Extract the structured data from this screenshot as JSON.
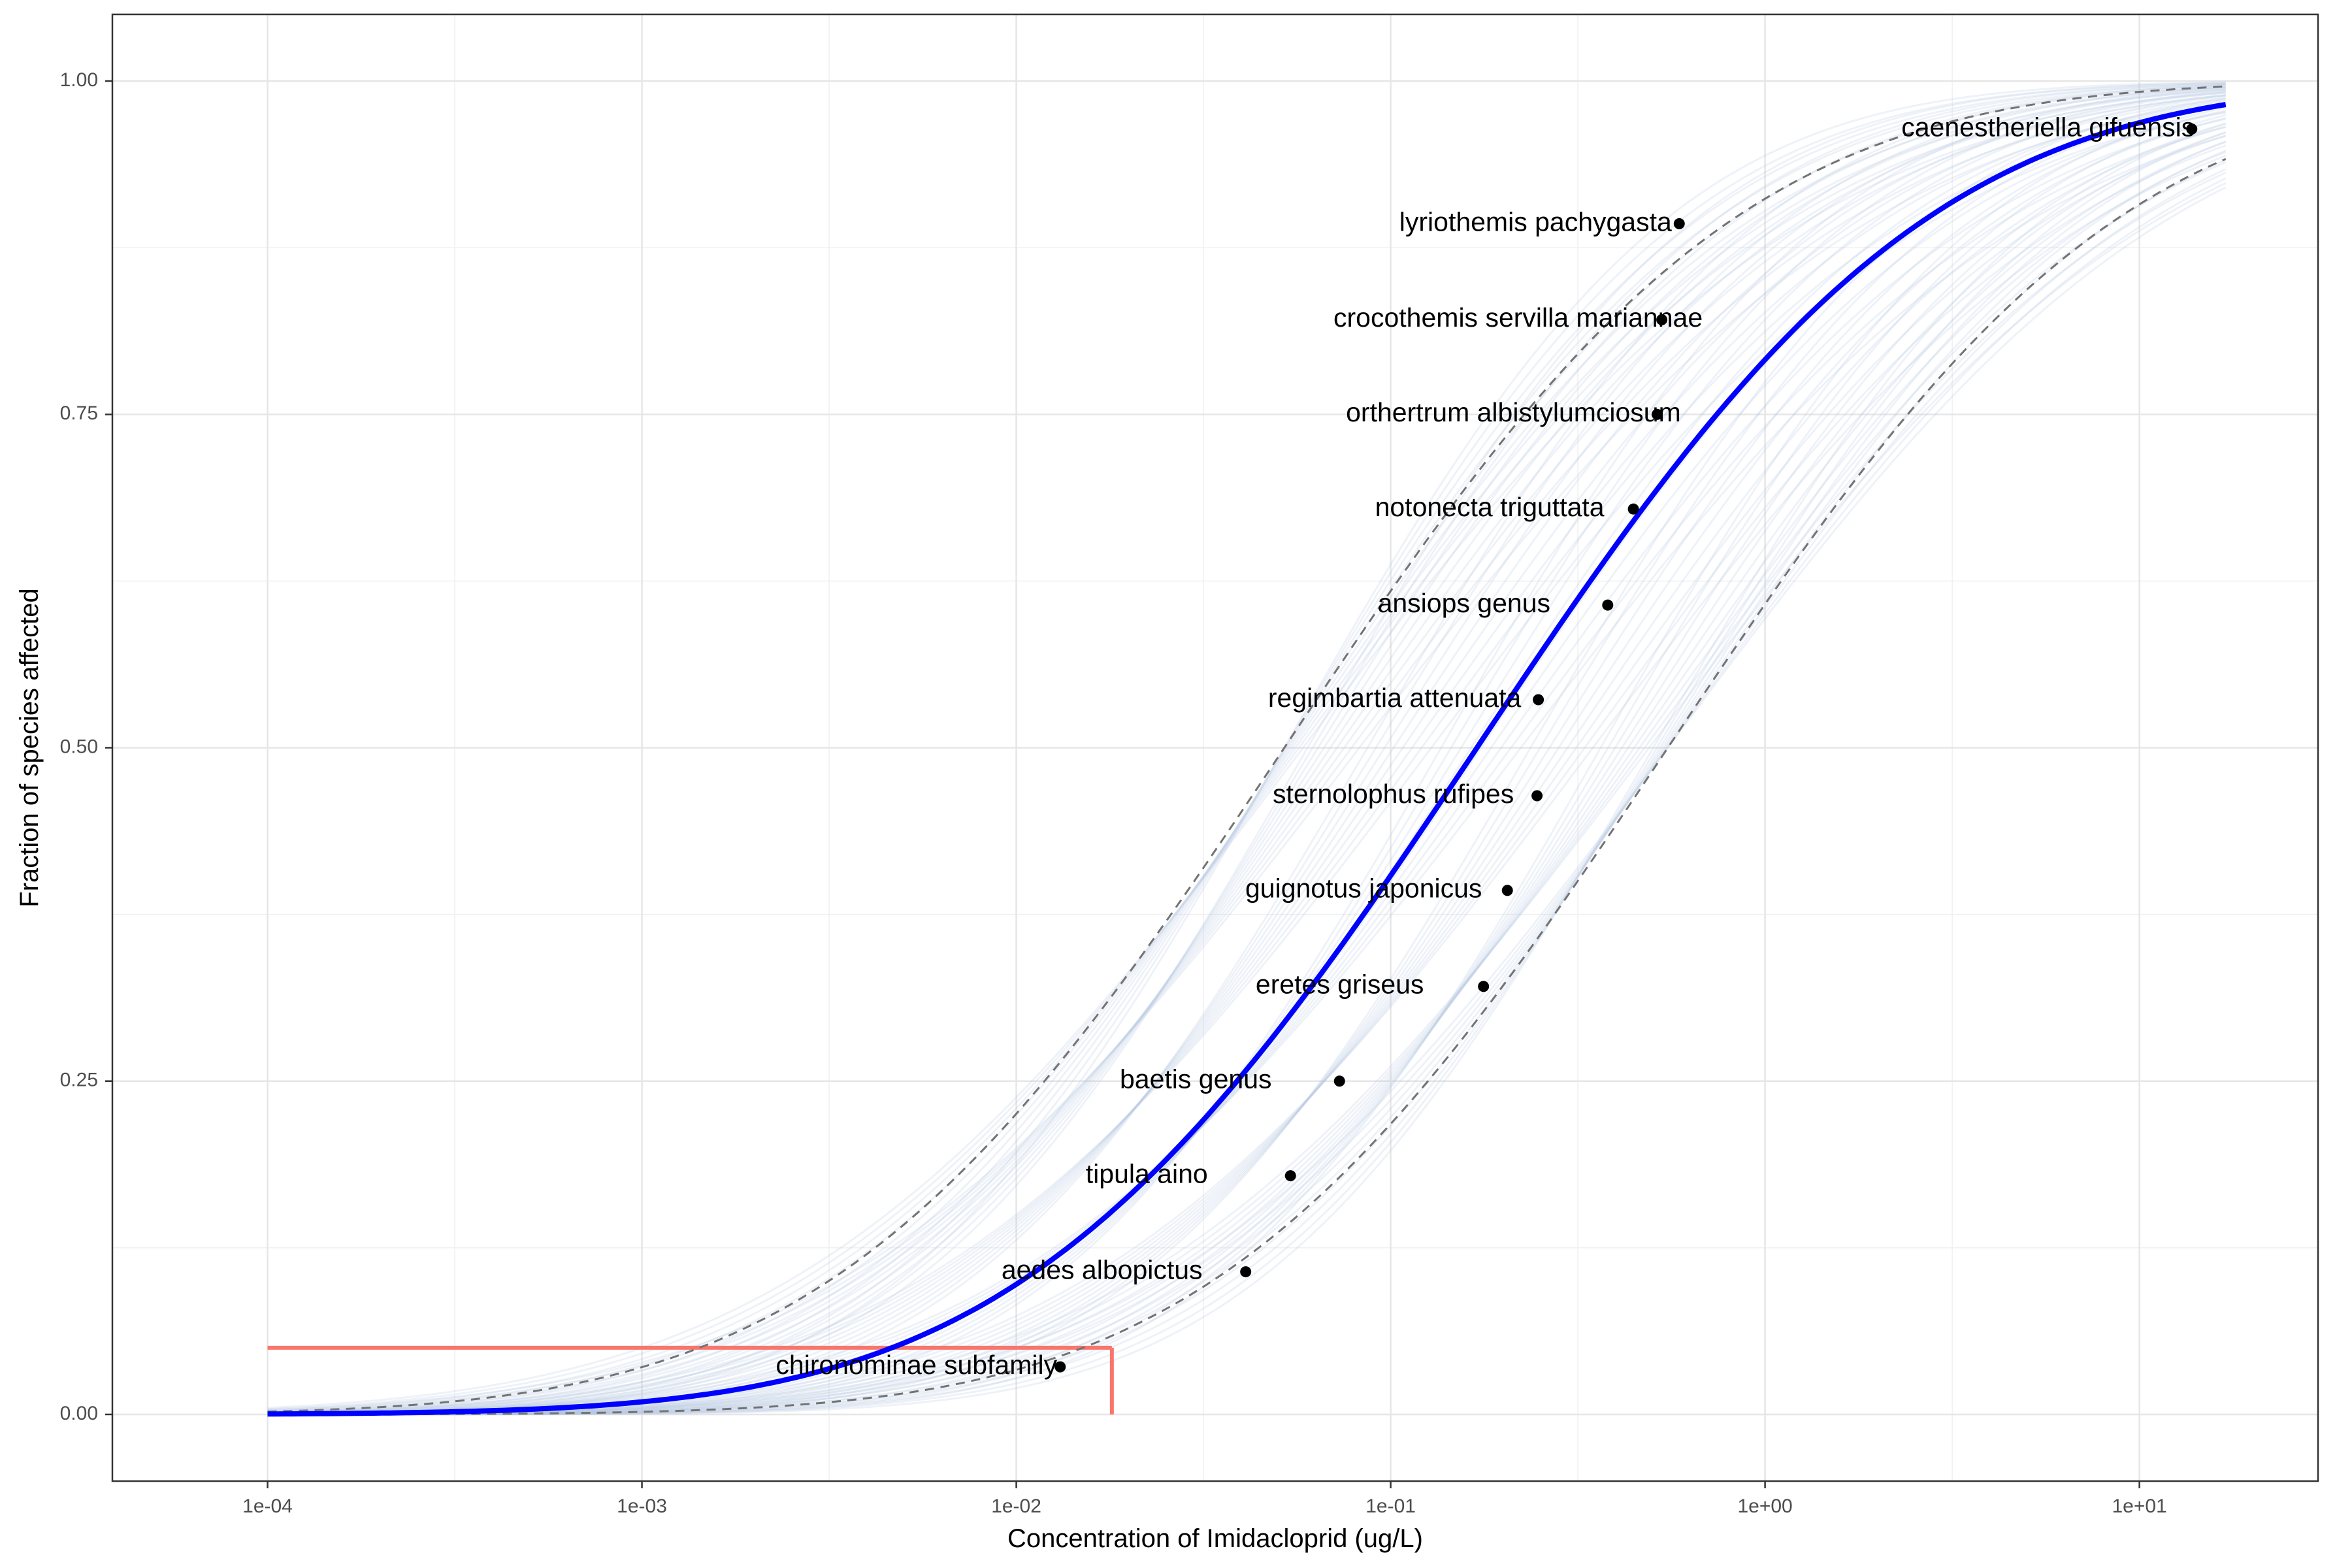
{
  "chart_data": {
    "type": "line",
    "title": "",
    "xlabel": "Concentration of Imidacloprid (ug/L)",
    "ylabel": "Fraction of species affected",
    "x_scale": "log10",
    "xlim": [
      3.85e-05,
      30
    ],
    "ylim": [
      -0.05,
      1.05
    ],
    "x_ticks": [
      {
        "value": 0.0001,
        "label": "1e-04"
      },
      {
        "value": 0.001,
        "label": "1e-03"
      },
      {
        "value": 0.01,
        "label": "1e-02"
      },
      {
        "value": 0.1,
        "label": "1e-01"
      },
      {
        "value": 1,
        "label": "1e+00"
      },
      {
        "value": 10,
        "label": "1e+01"
      }
    ],
    "y_ticks": [
      {
        "value": 0.0,
        "label": "0.00"
      },
      {
        "value": 0.25,
        "label": "0.25"
      },
      {
        "value": 0.5,
        "label": "0.50"
      },
      {
        "value": 0.75,
        "label": "0.75"
      },
      {
        "value": 1.0,
        "label": "1.00"
      }
    ],
    "grid": true,
    "legend": "none",
    "fitted_curve": {
      "distribution": "log-normal CDF",
      "median": 0.17,
      "log10_sd": 0.95,
      "x_range": [
        0.0001,
        17
      ],
      "color": "#0000ff"
    },
    "confidence_bounds": [
      {
        "name": "lower",
        "median": 0.052,
        "log10_sd": 0.95,
        "color": "#737373"
      },
      {
        "name": "upper",
        "median": 0.55,
        "log10_sd": 0.95,
        "color": "#737373"
      }
    ],
    "bootstrap_curves": {
      "count": 60,
      "color": "#b0c4de"
    },
    "hc5": {
      "value": 0.018,
      "fraction": 0.05,
      "color": "#f8766d"
    },
    "points": [
      {
        "name": "chironominae subfamily",
        "x": 0.0131,
        "y": 0.0357
      },
      {
        "name": "aedes albopictus",
        "x": 0.041,
        "y": 0.107
      },
      {
        "name": "tipula aino",
        "x": 0.054,
        "y": 0.179
      },
      {
        "name": "baetis genus",
        "x": 0.073,
        "y": 0.25
      },
      {
        "name": "eretes griseus",
        "x": 0.177,
        "y": 0.321
      },
      {
        "name": "guignotus japonicus",
        "x": 0.205,
        "y": 0.393
      },
      {
        "name": "sternolophus rufipes",
        "x": 0.246,
        "y": 0.464
      },
      {
        "name": "regimbartia attenuata",
        "x": 0.248,
        "y": 0.536
      },
      {
        "name": "ansiops genus",
        "x": 0.38,
        "y": 0.607
      },
      {
        "name": "notonecta triguttata",
        "x": 0.445,
        "y": 0.679
      },
      {
        "name": "orthertrum albistylumciosum",
        "x": 0.515,
        "y": 0.75
      },
      {
        "name": "crocothemis servilla mariannae",
        "x": 0.53,
        "y": 0.821
      },
      {
        "name": "lyriothemis pachygasta",
        "x": 0.59,
        "y": 0.893
      },
      {
        "name": "caenestheriella gifuensis",
        "x": 13.8,
        "y": 0.964
      }
    ]
  }
}
